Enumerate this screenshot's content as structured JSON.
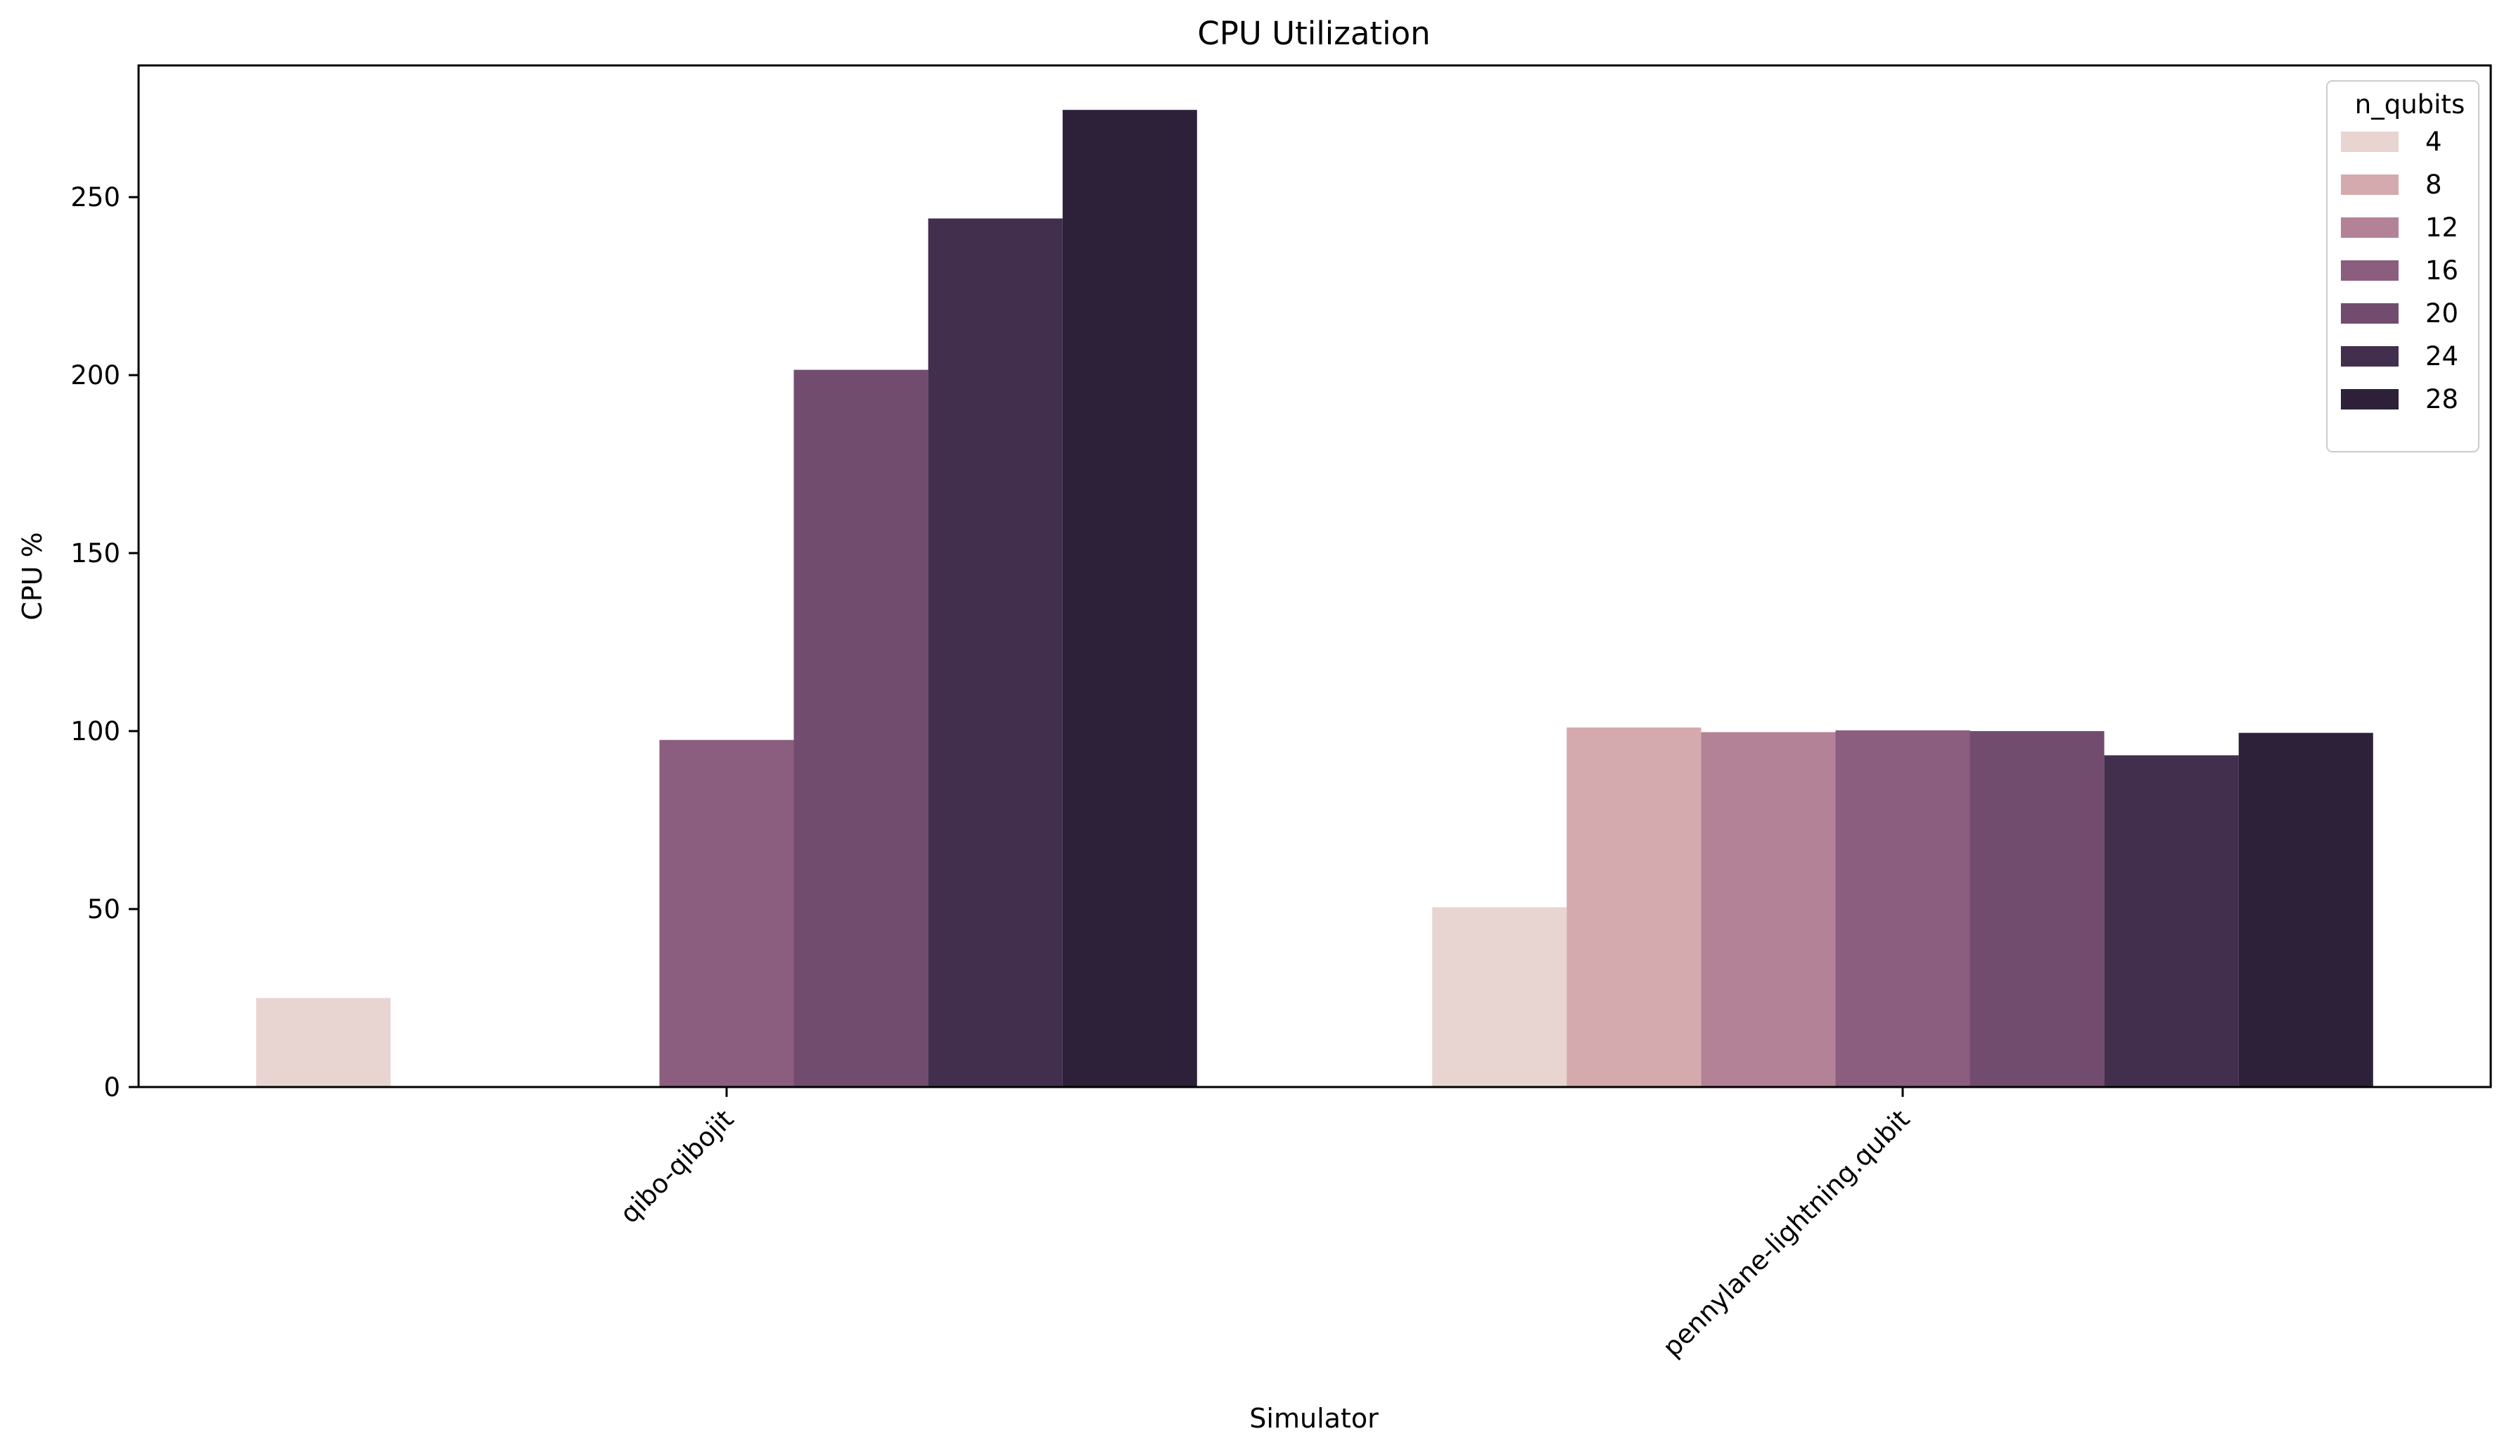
{
  "chart_data": {
    "type": "bar",
    "title": "CPU Utilization",
    "xlabel": "Simulator",
    "ylabel": "CPU %",
    "categories": [
      "qibo-qibojit",
      "pennylane-lightning.qubit"
    ],
    "ylim": [
      0,
      287
    ],
    "yticks": [
      0,
      50,
      100,
      150,
      200,
      250
    ],
    "grid": false,
    "legend": {
      "title": "n_qubits",
      "placement": "top-right"
    },
    "series": [
      {
        "name": "4",
        "color": "#e8d4d1",
        "values": [
          25,
          50.5
        ]
      },
      {
        "name": "8",
        "color": "#d4aaae",
        "values": [
          null,
          101
        ]
      },
      {
        "name": "12",
        "color": "#b38296",
        "values": [
          null,
          99.7
        ]
      },
      {
        "name": "16",
        "color": "#8b5d7e",
        "values": [
          97.5,
          100.2
        ]
      },
      {
        "name": "20",
        "color": "#724c6f",
        "values": [
          201.5,
          100
        ]
      },
      {
        "name": "24",
        "color": "#422f4d",
        "values": [
          244,
          93.2
        ]
      },
      {
        "name": "28",
        "color": "#2d2139",
        "values": [
          274.5,
          99.5
        ]
      }
    ]
  }
}
